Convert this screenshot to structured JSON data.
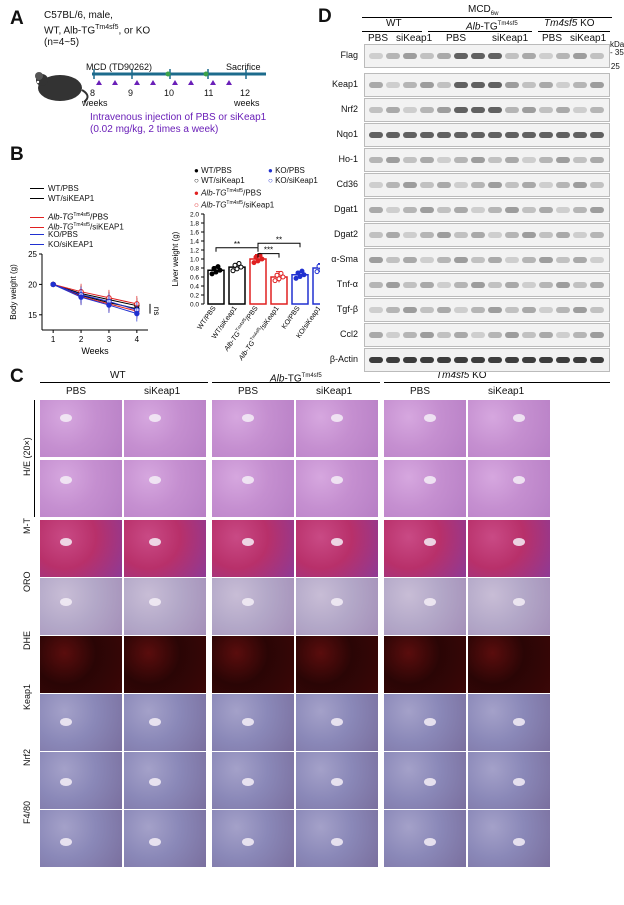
{
  "panelA": {
    "label": "A",
    "mouse_text": [
      "C57BL/6, male,",
      "WT, Alb-TG",
      "Tm4sf5",
      ", or KO",
      "(n=4~5)"
    ],
    "diet": "MCD (TD90262)",
    "sacrifice": "Sacrifice",
    "weeks": [
      "8",
      "9",
      "10",
      "11",
      "12"
    ],
    "weeks_word": "weeks",
    "injection": [
      "Intravenous injection of PBS or siKeap1",
      "(0.02 mg/kg, 2 times a week)"
    ]
  },
  "panelB": {
    "label": "B",
    "line_legend": [
      "WT/PBS",
      "WT/siKEAP1",
      "Alb-TG",
      "Tm4sf5",
      "/PBS",
      "/siKEAP1",
      "KO/PBS",
      "KO/siKEAP1"
    ],
    "bar_legend": [
      "WT/PBS",
      "WT/siKeap1",
      "Alb-TG",
      "Tm4sf5",
      "/PBS",
      "/siKeap1",
      "KO/PBS",
      "KO/siKeap1"
    ],
    "ns": "ns",
    "stars": [
      "**",
      "***",
      "**"
    ]
  },
  "chart_data": [
    {
      "type": "line",
      "xlabel": "Weeks",
      "ylabel": "Body weight (g)",
      "x": [
        1,
        2,
        3,
        4
      ],
      "xlim": [
        0.6,
        4.4
      ],
      "ylim": [
        12.5,
        25
      ],
      "yticks": [
        15,
        20,
        25
      ],
      "series": [
        {
          "name": "WT/PBS",
          "color": "#000000",
          "filled": false,
          "values": [
            20,
            18.5,
            17.5,
            16.5
          ]
        },
        {
          "name": "WT/siKEAP1",
          "color": "#000000",
          "filled": true,
          "values": [
            20,
            18.2,
            17.0,
            16.0
          ]
        },
        {
          "name": "Alb-TGTm4sf5/PBS",
          "color": "#e02020",
          "filled": false,
          "values": [
            20,
            18.8,
            17.8,
            16.8
          ]
        },
        {
          "name": "Alb-TGTm4sf5/siKEAP1",
          "color": "#e02020",
          "filled": true,
          "values": [
            20,
            18.0,
            16.8,
            15.6
          ]
        },
        {
          "name": "KO/PBS",
          "color": "#2030d0",
          "filled": false,
          "values": [
            20,
            18.3,
            17.2,
            15.8
          ]
        },
        {
          "name": "KO/siKEAP1",
          "color": "#2030d0",
          "filled": true,
          "values": [
            20,
            17.9,
            16.6,
            15.2
          ]
        }
      ]
    },
    {
      "type": "bar",
      "ylabel": "Liver weight (g)",
      "ylim": [
        0,
        2.0
      ],
      "yticks": [
        0.0,
        0.2,
        0.4,
        0.6,
        0.8,
        1.0,
        1.2,
        1.4,
        1.6,
        1.8,
        2.0
      ],
      "categories": [
        "WT/PBS",
        "WT/siKeap1",
        "Alb-TGTm4sf5/PBS",
        "Alb-TGTm4sf5/siKeap1",
        "KO/PBS",
        "KO/siKeap1"
      ],
      "category_labels": [
        [
          "WT/PBS",
          ""
        ],
        [
          "WT/siKeap1",
          ""
        ],
        [
          "Alb-TG",
          "/PBS"
        ],
        [
          "Alb-TG",
          "/siKeap1"
        ],
        [
          "KO/PBS",
          ""
        ],
        [
          "KO/siKeap1",
          ""
        ]
      ],
      "values": [
        0.75,
        0.82,
        1.0,
        0.6,
        0.65,
        0.8
      ],
      "errors": [
        0.08,
        0.08,
        0.1,
        0.12,
        0.05,
        0.1
      ],
      "colors": [
        "#000000",
        "#000000",
        "#e02020",
        "#e02020",
        "#2030d0",
        "#2030d0"
      ]
    }
  ],
  "panelC": {
    "label": "C",
    "groups": [
      "WT",
      "Alb-TG",
      "Tm4sf5",
      "Tm4sf5 KO"
    ],
    "group_labels": {
      "wt": "WT",
      "alb_prefix": "Alb",
      "alb_suffix": "-TG",
      "alb_sup": "Tm4sf5",
      "ko_italic": "Tm4sf5",
      "ko": " KO"
    },
    "columns": [
      "PBS",
      "siKeap1",
      "PBS",
      "siKeap1",
      "PBS",
      "siKeap1"
    ],
    "rows": [
      "H/E (20×)",
      "M-T",
      "ORO",
      "DHE",
      "Keap1",
      "Nrf2",
      "F4/80"
    ]
  },
  "panelD": {
    "label": "D",
    "title": "MCD",
    "title_sub": "6w",
    "groups": {
      "wt": "WT",
      "alb_prefix": "Alb",
      "alb_suffix": "-TG",
      "alb_sup": "Tm4sf5",
      "ko_italic": "Tm4sf5",
      "ko": " KO"
    },
    "subgroups": [
      "PBS",
      "siKeap1",
      "PBS",
      "siKeap1",
      "PBS",
      "siKeap1"
    ],
    "proteins": [
      "Flag",
      "Keap1",
      "Nrf2",
      "Nqo1",
      "Ho-1",
      "Cd36",
      "Dgat1",
      "Dgat2",
      "α-Sma",
      "Tnf-α",
      "Tgf-β",
      "Ccl2",
      "β-Actin"
    ],
    "kda": "kDa",
    "markers": [
      "35",
      "25"
    ]
  },
  "colors": {
    "he": "#c58fd0",
    "mt": "#b8306a",
    "oro": "#b3a8c8",
    "dhe": "#2a0505",
    "ihc": "#8a88b8",
    "accent_purple": "#6a1fb8",
    "red": "#e02020",
    "blue": "#2030d0"
  }
}
